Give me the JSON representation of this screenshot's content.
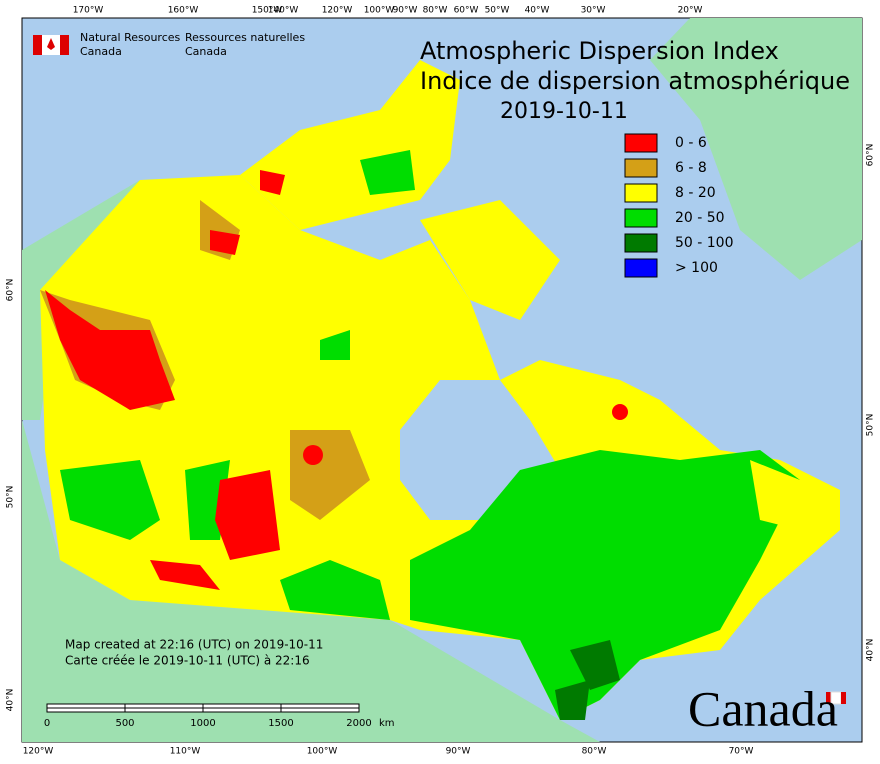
{
  "header": {
    "agency_en": "Natural Resources",
    "agency_en_country": "Canada",
    "agency_fr": "Ressources naturelles",
    "agency_fr_country": "Canada"
  },
  "title": [
    "Atmospheric Dispersion Index",
    "Indice de dispersion atmosphérique",
    "2019-10-11"
  ],
  "legend": [
    {
      "label": "0 - 6",
      "color": "#ff0000"
    },
    {
      "label": "6 - 8",
      "color": "#d4a017"
    },
    {
      "label": "8 - 20",
      "color": "#ffff00"
    },
    {
      "label": "20 - 50",
      "color": "#00dd00"
    },
    {
      "label": "50 - 100",
      "color": "#007a00"
    },
    {
      "label": "> 100",
      "color": "#0000ff"
    }
  ],
  "graticule": {
    "top": [
      "170°W",
      "160°W",
      "150°W",
      "140°W",
      "120°W",
      "100°W",
      "90°W",
      "80°W",
      "60°W",
      "50°W",
      "40°W",
      "30°W",
      "20°W"
    ],
    "bottom": [
      "120°W",
      "110°W",
      "100°W",
      "90°W",
      "80°W",
      "70°W"
    ],
    "left": [
      "60°N",
      "50°N",
      "40°N"
    ],
    "right": [
      "60°N",
      "50°N",
      "40°N"
    ]
  },
  "notes": [
    "Map created at 22:16 (UTC) on 2019-10-11",
    "Carte créée le 2019-10-11 (UTC) à 22:16"
  ],
  "scale": {
    "ticks": [
      "0",
      "500",
      "1000",
      "1500",
      "2000"
    ],
    "unit": "km"
  },
  "wordmark": "Canada"
}
